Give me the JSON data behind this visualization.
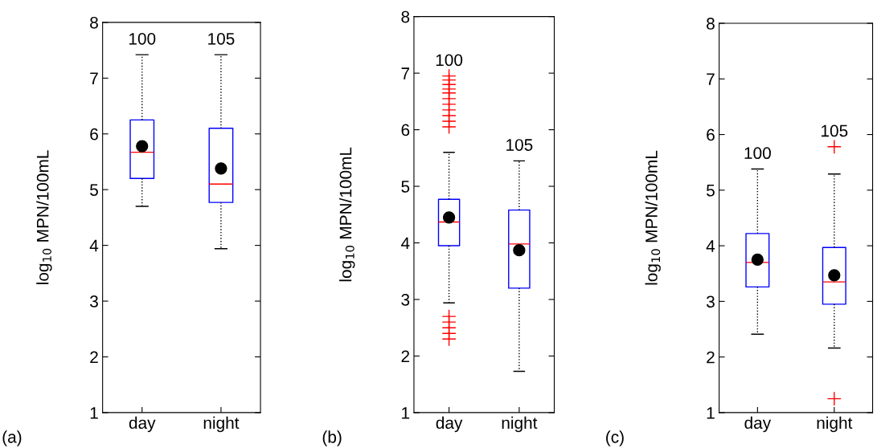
{
  "chart_data": [
    {
      "type": "box",
      "categories": [
        "day",
        "night"
      ],
      "ylabel": "log$_{10}$ MPN/100mL",
      "ylim": [
        1,
        8
      ],
      "yticks": [
        1,
        2,
        3,
        4,
        5,
        6,
        7,
        8
      ],
      "boxes": [
        {
          "low": 4.7,
          "q1": 5.2,
          "median": 5.67,
          "q3": 6.25,
          "high": 7.42,
          "mean": 5.78
        },
        {
          "low": 3.94,
          "q1": 4.77,
          "median": 5.1,
          "q3": 6.1,
          "high": 7.42,
          "mean": 5.38
        }
      ],
      "annotations": [
        "100",
        "105",
        "(a)"
      ]
    },
    {
      "type": "box",
      "categories": [
        "day",
        "night"
      ],
      "ylabel": "log$_{10}$ MPN/100mL",
      "ylim": [
        1,
        8
      ],
      "yticks": [
        1,
        2,
        3,
        4,
        5,
        6,
        7,
        8
      ],
      "boxes": [
        {
          "low": 2.94,
          "q1": 3.95,
          "median": 4.37,
          "q3": 4.77,
          "high": 5.6,
          "mean": 4.45,
          "outliers": [
            6.05,
            6.15,
            6.25,
            6.35,
            6.45,
            6.55,
            6.65,
            6.72,
            6.8,
            6.88,
            6.95,
            2.3,
            2.4,
            2.5,
            2.6,
            2.7
          ]
        },
        {
          "low": 1.73,
          "q1": 3.2,
          "median": 3.98,
          "q3": 4.58,
          "high": 5.45,
          "mean": 3.87
        }
      ],
      "annotations": [
        "100",
        "105",
        "(b)"
      ]
    },
    {
      "type": "box",
      "categories": [
        "day",
        "night"
      ],
      "ylabel": "log$_{10}$ MPN/100mL",
      "ylim": [
        1,
        8
      ],
      "yticks": [
        1,
        2,
        3,
        4,
        5,
        6,
        7,
        8
      ],
      "boxes": [
        {
          "low": 2.41,
          "q1": 3.26,
          "median": 3.7,
          "q3": 4.22,
          "high": 5.38,
          "mean": 3.75
        },
        {
          "low": 2.16,
          "q1": 2.95,
          "median": 3.35,
          "q3": 3.97,
          "high": 5.29,
          "mean": 3.47,
          "outliers": [
            5.78,
            1.25
          ]
        }
      ],
      "annotations": [
        "100",
        "105",
        "(c)"
      ]
    }
  ]
}
